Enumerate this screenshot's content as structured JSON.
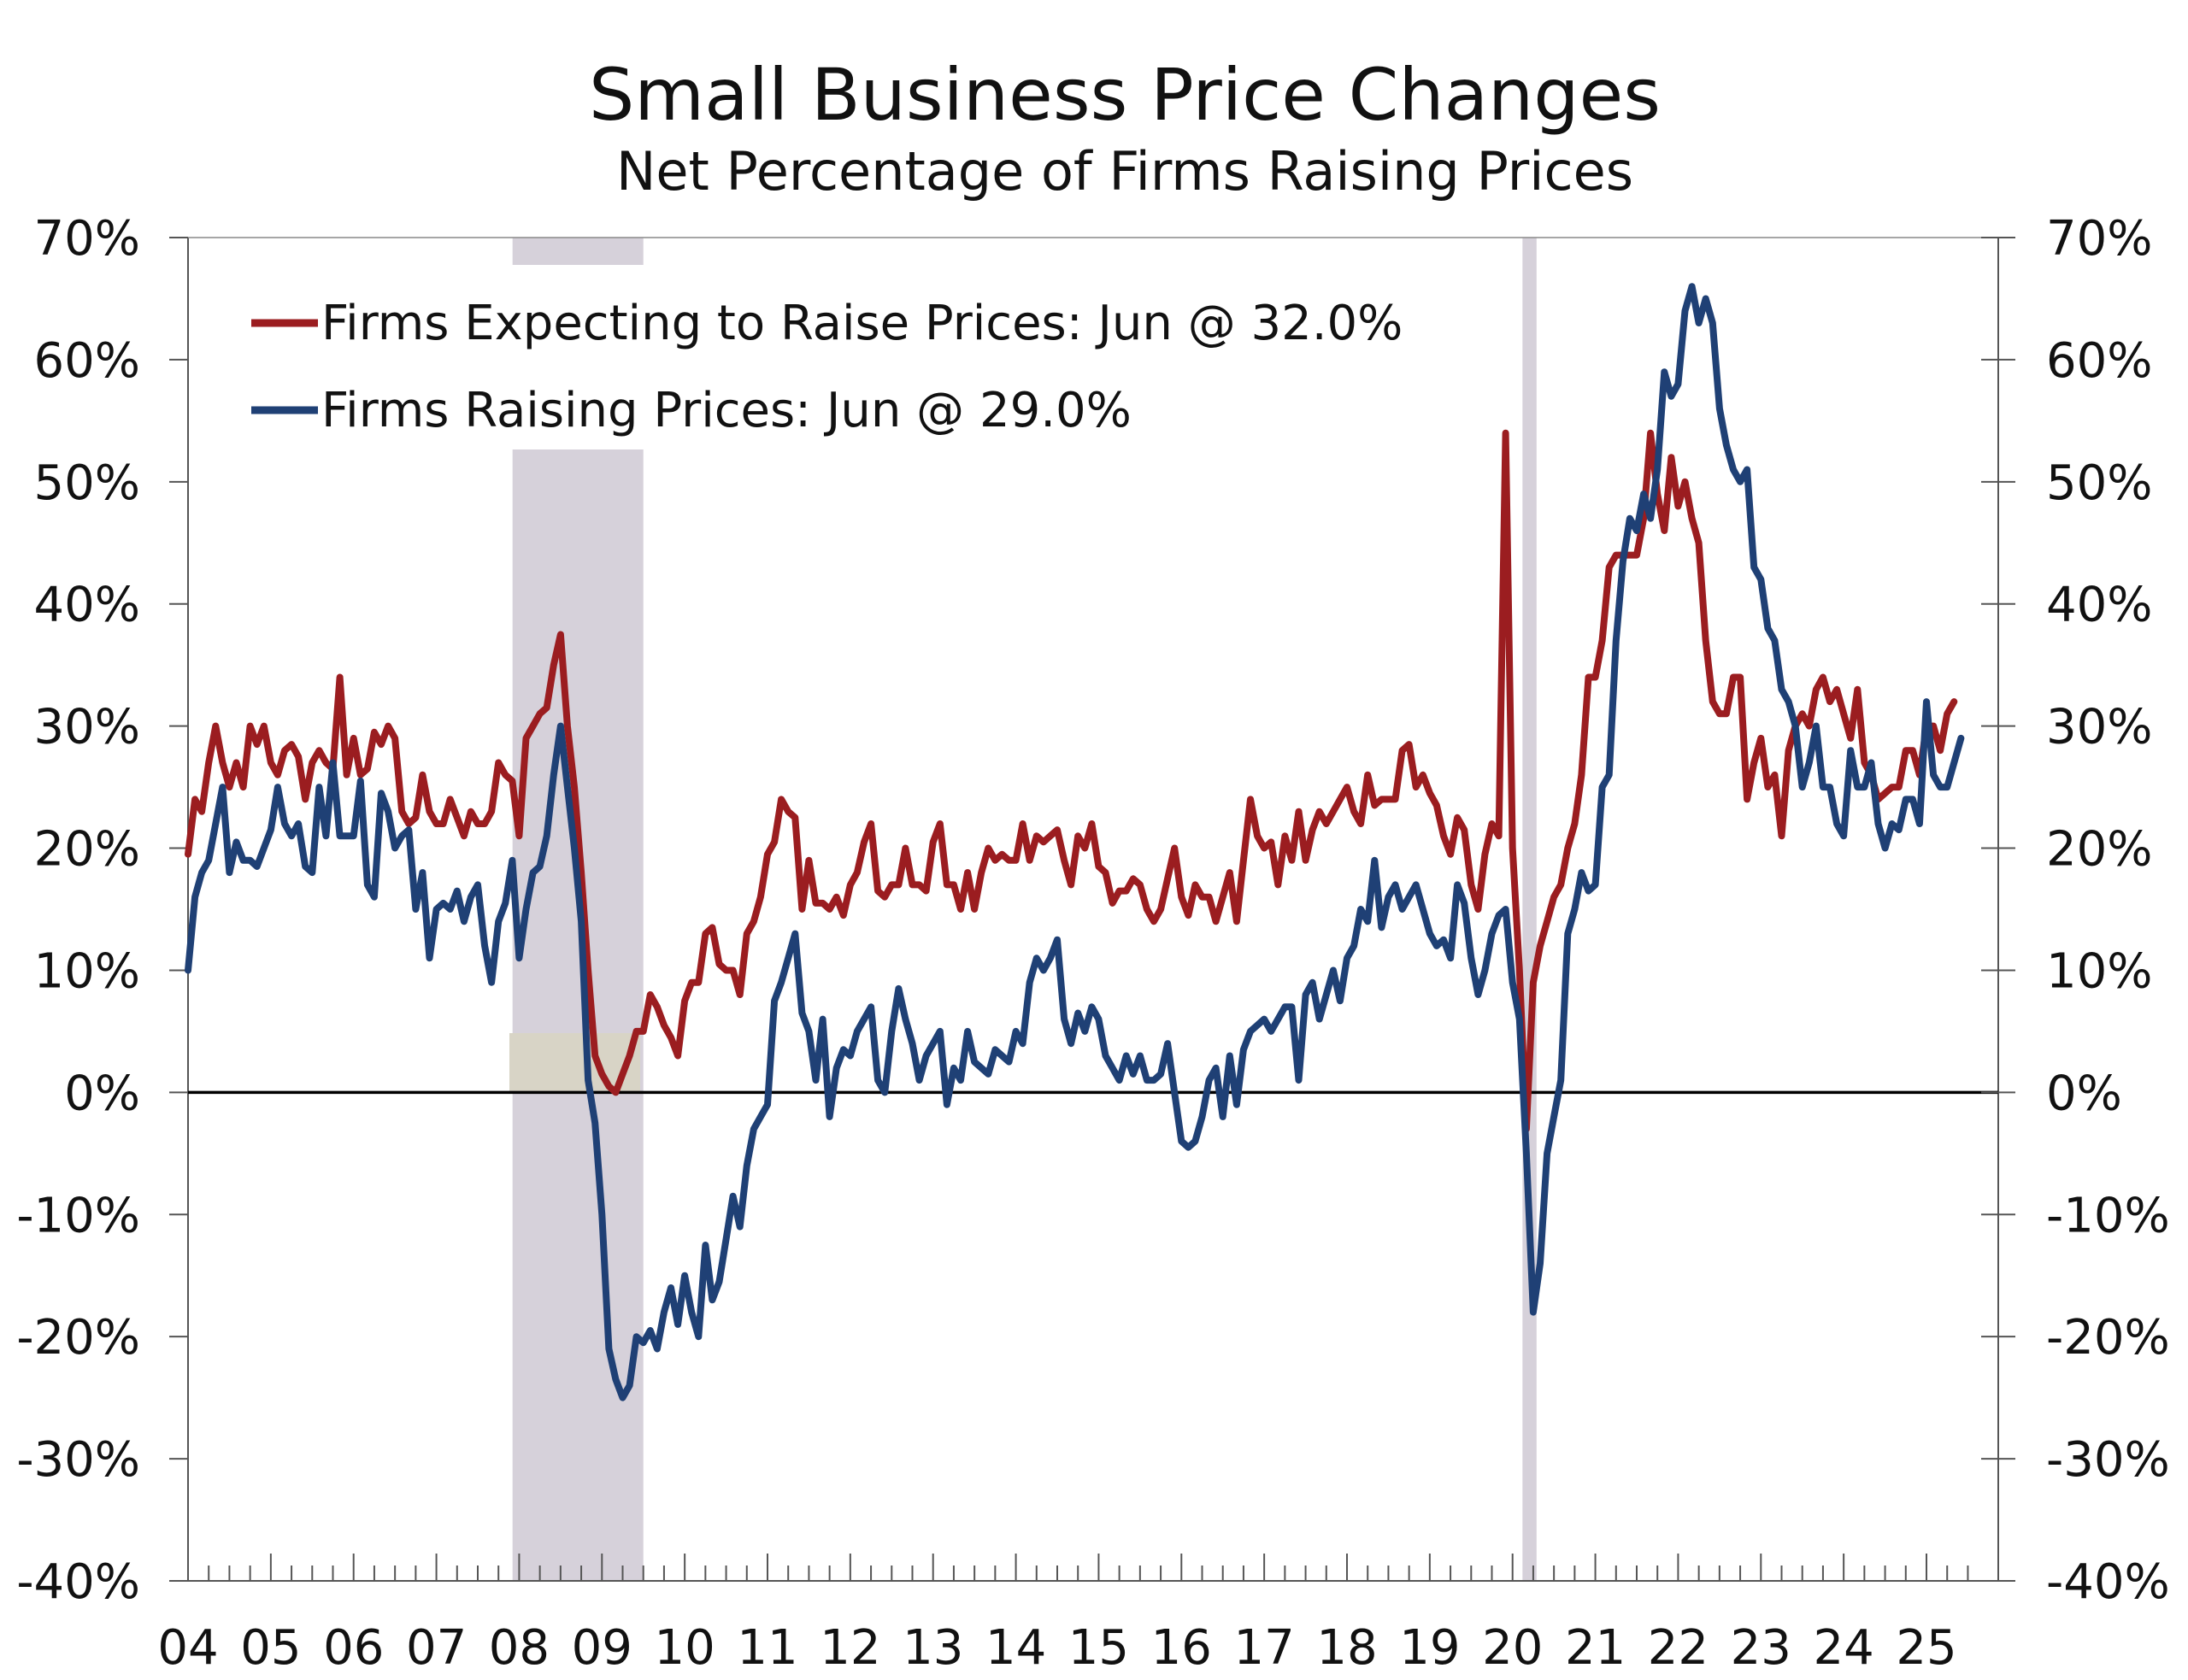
{
  "chart_data": {
    "type": "line",
    "title": "Small Business Price Changes",
    "subtitle": "Net Percentage of Firms Raising Prices",
    "xlabel": "",
    "ylabel": "",
    "frequency": "monthly",
    "start": "2004-01",
    "end": "2025-06",
    "ylim": [
      -40,
      70
    ],
    "y_ticks": [
      "70%",
      "60%",
      "50%",
      "40%",
      "30%",
      "20%",
      "10%",
      "0%",
      "-10%",
      "-20%",
      "-30%",
      "-40%"
    ],
    "y_tick_values": [
      70,
      60,
      50,
      40,
      30,
      20,
      10,
      0,
      -10,
      -20,
      -30,
      -40
    ],
    "x_ticks": [
      "04",
      "05",
      "06",
      "07",
      "08",
      "09",
      "10",
      "11",
      "12",
      "13",
      "14",
      "15",
      "16",
      "17",
      "18",
      "19",
      "20",
      "21",
      "22",
      "23",
      "24",
      "25"
    ],
    "grid": false,
    "legend_position": "top-left",
    "recessions": [
      [
        2007.92,
        2009.5
      ],
      [
        2020.12,
        2020.29
      ]
    ],
    "series": [
      {
        "name": "Firms Expecting to Raise Prices: Jun @ 32.0%",
        "color": "#9b1d20",
        "values": [
          19.5,
          24,
          23,
          27,
          30,
          27,
          25,
          27,
          25,
          30,
          28.5,
          30,
          27,
          26,
          28,
          28.5,
          27.5,
          24,
          27,
          28,
          27,
          26.5,
          34,
          26,
          29,
          26,
          26.5,
          29.5,
          28.5,
          30,
          29,
          23,
          22,
          22.5,
          26,
          23,
          22,
          22,
          24,
          22.5,
          21,
          23,
          22,
          22,
          23,
          27,
          26,
          25.5,
          21,
          29,
          30,
          31,
          31.5,
          35,
          37.5,
          30,
          25,
          18,
          10,
          3,
          1.5,
          0.5,
          0,
          1.5,
          3,
          5,
          5,
          8,
          7,
          5.5,
          4.5,
          3,
          7.5,
          9,
          9,
          13,
          13.5,
          10.5,
          10,
          10,
          8,
          13,
          14,
          16,
          19.5,
          20.5,
          24,
          23,
          22.5,
          15,
          19,
          15.5,
          15.5,
          15,
          16,
          14.5,
          17,
          18,
          20.5,
          22,
          16.5,
          16,
          17,
          17,
          20,
          17,
          17,
          16.5,
          20.5,
          22,
          17,
          17,
          15,
          18,
          15,
          18,
          20,
          19,
          19.5,
          19,
          19,
          22,
          19,
          21,
          20.5,
          21,
          21.5,
          19,
          17,
          21,
          20,
          22,
          18.5,
          18,
          15.5,
          16.5,
          16.5,
          17.5,
          17,
          15,
          14,
          15,
          17.5,
          20,
          16,
          14.5,
          17,
          16,
          16,
          14,
          16,
          18,
          14,
          19,
          24,
          21,
          20,
          20.5,
          17,
          21,
          19,
          23,
          19,
          21.5,
          23,
          22,
          23,
          24,
          25,
          23,
          22,
          26,
          23.5,
          24,
          24,
          24,
          28,
          28.5,
          25,
          26,
          24.5,
          23.5,
          21,
          19.5,
          22.5,
          21.5,
          17,
          15,
          19.5,
          22,
          21,
          54,
          20,
          10,
          -3,
          9,
          12,
          14,
          16,
          17,
          20,
          22,
          26,
          34,
          34,
          37,
          43,
          44,
          44,
          44,
          44,
          47,
          54,
          49,
          46,
          52,
          48,
          50,
          47,
          45,
          37,
          32,
          31,
          31,
          34,
          34,
          24,
          27,
          29,
          25,
          26,
          21,
          28,
          30,
          31,
          30,
          33,
          34,
          32,
          33,
          31,
          29,
          33,
          27,
          26,
          24,
          24.5,
          25,
          25,
          28,
          28,
          26,
          30,
          30,
          28,
          31,
          32
        ]
      },
      {
        "name": "Firms Raising Prices: Jun @ 29.0%",
        "color": "#1f4075",
        "values": [
          10,
          16,
          18,
          19,
          22,
          25,
          18,
          20.5,
          19,
          19,
          18.5,
          20,
          21.5,
          25,
          22,
          21,
          22,
          18.5,
          18,
          25,
          21,
          27,
          21,
          21,
          21,
          25.5,
          17,
          16,
          24.5,
          23,
          20,
          21,
          21.5,
          15,
          18,
          11,
          15,
          15.5,
          15,
          16.5,
          14,
          16,
          17,
          12,
          9,
          14,
          15.5,
          19,
          11,
          15,
          18,
          18.5,
          21,
          26,
          30,
          25,
          20,
          14,
          1,
          -2.5,
          -10,
          -21,
          -23.5,
          -25,
          -24,
          -20,
          -20.5,
          -19.5,
          -21,
          -18,
          -16,
          -19,
          -15,
          -18,
          -20,
          -12.5,
          -17,
          -15.5,
          -12,
          -8.5,
          -11,
          -6,
          -3,
          -2,
          -1,
          7.5,
          9,
          11,
          13,
          6.5,
          5,
          1,
          6,
          -2,
          2,
          3.5,
          3,
          5,
          6,
          7,
          1,
          0,
          5,
          8.5,
          6,
          4,
          1,
          3,
          4,
          5,
          -1,
          2,
          1,
          5,
          2.5,
          2,
          1.5,
          3.5,
          3,
          2.5,
          5,
          4,
          9,
          11,
          10,
          11,
          12.5,
          6,
          4,
          6.5,
          5,
          7,
          6,
          3,
          2,
          1,
          3,
          1.5,
          3,
          1,
          1,
          1.5,
          4,
          0,
          -4,
          -4.5,
          -4,
          -2,
          1,
          2,
          -2,
          3,
          -1,
          3.5,
          5,
          5.5,
          6,
          5,
          6,
          7,
          7,
          1,
          8,
          9,
          6,
          8,
          10,
          7.5,
          11,
          12,
          15,
          14,
          19,
          13.5,
          16,
          17,
          15,
          16,
          17,
          15,
          13,
          12,
          12.5,
          11,
          17,
          15.5,
          11,
          8,
          10,
          13,
          14.5,
          15,
          9,
          6,
          -5,
          -18,
          -14,
          -5,
          -2,
          1,
          13,
          15,
          18,
          16.5,
          17,
          25,
          26,
          37,
          43.5,
          47,
          46,
          49,
          47,
          51,
          59,
          57,
          58,
          64,
          66,
          63,
          65,
          63,
          56,
          53,
          51,
          50,
          51,
          43,
          42,
          38,
          37,
          33,
          32,
          30,
          25,
          27,
          30,
          25,
          25,
          22,
          21,
          28,
          25,
          25,
          27,
          22,
          20,
          22,
          21.5,
          24,
          24,
          22,
          32,
          26,
          25,
          25,
          27,
          29
        ]
      }
    ]
  }
}
